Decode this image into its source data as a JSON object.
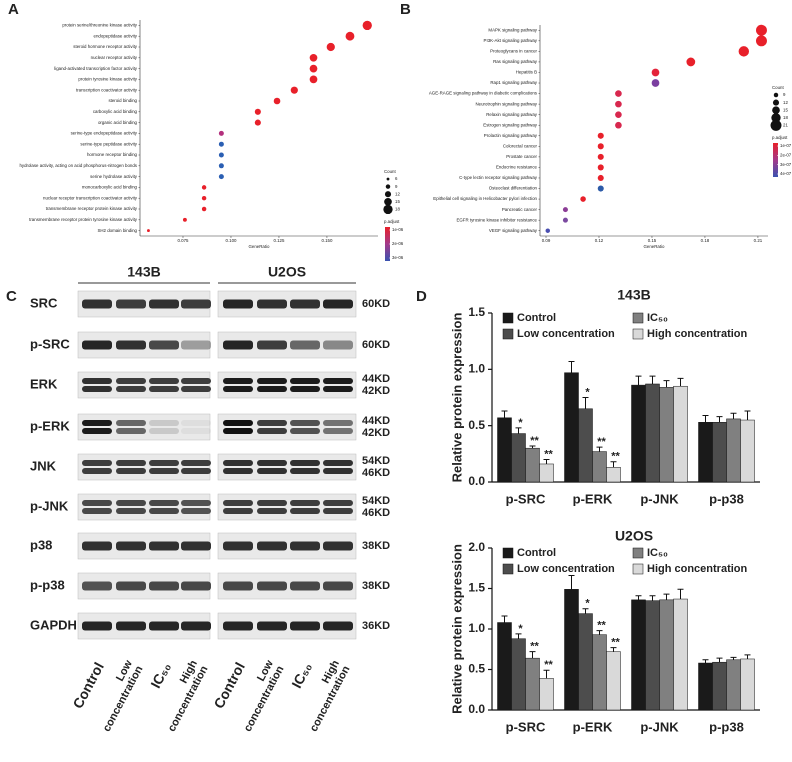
{
  "panel_labels": [
    "A",
    "B",
    "C",
    "D"
  ],
  "chart_data": [
    {
      "type": "dot",
      "xlabel": "GeneRatio",
      "categories": [
        "protein serine/threonine kinase activity",
        "endopeptidase activity",
        "steroid hormone receptor activity",
        "nuclear receptor activity",
        "ligand-activated transcription factor activity",
        "protein tyrosine kinase activity",
        "transcription coactivator activity",
        "steroid binding",
        "carboxylic acid binding",
        "organic acid binding",
        "serine-type endopeptidase activity",
        "serine-type peptidase activity",
        "hormone receptor binding",
        "hydrolase activity, acting on acid phosphorus-nitrogen bonds",
        "serine hydrolase activity",
        "monocarboxylic acid binding",
        "nuclear receptor transcription coactivator activity",
        "transmembrane receptor protein kinase activity",
        "transmembrane receptor protein tyrosine kinase activity",
        "SH2 domain binding"
      ],
      "values": [
        0.171,
        0.162,
        0.152,
        0.143,
        0.143,
        0.143,
        0.133,
        0.124,
        0.114,
        0.114,
        0.095,
        0.095,
        0.095,
        0.095,
        0.095,
        0.086,
        0.086,
        0.086,
        0.076,
        0.057
      ],
      "sizes": [
        18,
        17,
        16,
        15,
        15,
        15,
        14,
        13,
        12,
        12,
        10,
        10,
        10,
        10,
        10,
        9,
        9,
        9,
        8,
        6
      ],
      "colors": [
        "#e8202a",
        "#e8202a",
        "#e8202a",
        "#e8202a",
        "#e8202a",
        "#e8202a",
        "#e8202a",
        "#e8202a",
        "#e8202a",
        "#e8202a",
        "#b3307d",
        "#2b5fb3",
        "#2b5fb3",
        "#2b5fb3",
        "#2b5fb3",
        "#e8202a",
        "#e8202a",
        "#e8202a",
        "#e8202a",
        "#e8202a"
      ],
      "xlim": [
        0.0526,
        0.1766
      ],
      "xticks": [
        0.075,
        {
          "value": 0.1,
          "label": "0.100"
        },
        0.125,
        {
          "value": 0.15,
          "label": "0.150"
        }
      ],
      "size_legend": {
        "title": "Count",
        "values": [
          6,
          9,
          12,
          15,
          18
        ]
      },
      "color_legend": {
        "title": "p.adjust",
        "ticks": [
          {
            "value": 1e-06,
            "label": "1e-06"
          },
          {
            "value": 2e-06,
            "label": "2e-06"
          },
          {
            "value": 3e-06,
            "label": "3e-06"
          }
        ]
      }
    },
    {
      "type": "dot",
      "xlabel": "GeneRatio",
      "categories": [
        "MAPK signaling pathway",
        "PI3K-Akt signaling pathway",
        "Proteoglycans in cancer",
        "Ras signaling pathway",
        "Hepatitis B",
        "Rap1 signaling pathway",
        "AGE-RAGE signaling pathway in diabetic complications",
        "Neurotrophin signaling pathway",
        "Relaxin signaling pathway",
        "Estrogen signaling pathway",
        "Prolactin signaling pathway",
        "Colorectal cancer",
        "Prostate cancer",
        "Endocrine resistance",
        "C-type lectin receptor signaling pathway",
        "Osteoclast differentiation",
        "Epithelial cell signaling in Helicobacter pylori infection",
        "Pancreatic cancer",
        "EGFR tyrosine kinase inhibitor resistance",
        "VEGF signaling pathway"
      ],
      "values": [
        0.212,
        0.212,
        0.202,
        0.172,
        0.152,
        0.152,
        0.131,
        0.131,
        0.131,
        0.131,
        0.121,
        0.121,
        0.121,
        0.121,
        0.121,
        0.121,
        0.111,
        0.101,
        0.101,
        0.091
      ],
      "sizes": [
        21,
        21,
        20,
        17,
        15,
        15,
        13,
        13,
        13,
        13,
        12,
        12,
        12,
        12,
        12,
        12,
        11,
        10,
        10,
        9
      ],
      "colors": [
        "#e8202a",
        "#e8202a",
        "#e8202a",
        "#e8202a",
        "#e4233a",
        "#7b3fa0",
        "#d8284e",
        "#d8284e",
        "#d8284e",
        "#d8284e",
        "#e8202a",
        "#e8202a",
        "#e8202a",
        "#e8202a",
        "#e8202a",
        "#2d5ba8",
        "#e8202a",
        "#8c3d96",
        "#7b4aa0",
        "#4a4fb0"
      ],
      "xlim": [
        0.0866,
        0.2157
      ],
      "xticks": [
        0.09,
        0.12,
        0.15,
        0.18,
        0.21
      ],
      "size_legend": {
        "title": "Count",
        "values": [
          9,
          12,
          15,
          18,
          21
        ]
      },
      "color_legend": {
        "title": "p.adjust",
        "ticks": [
          {
            "value": 1e-07,
            "label": "1e-07"
          },
          {
            "value": 2e-07,
            "label": "2e-07"
          },
          {
            "value": 3e-07,
            "label": "3e-07"
          },
          {
            "value": 4e-07,
            "label": "4e-07"
          }
        ]
      }
    },
    {
      "type": "bar",
      "title": "143B",
      "ylabel": "Relative protein expression",
      "categories": [
        "p-SRC",
        "p-ERK",
        "p-JNK",
        "p-p38"
      ],
      "ylim": [
        0,
        1.5
      ],
      "yticks": [
        {
          "value": 0,
          "label": "0.0"
        },
        0.5,
        {
          "value": 1,
          "label": "1.0"
        },
        1.5
      ],
      "series": [
        {
          "name": "Control",
          "color": "#1a1a1a",
          "values": [
            0.57,
            0.97,
            0.86,
            0.53
          ],
          "errors": [
            0.06,
            0.1,
            0.08,
            0.06
          ]
        },
        {
          "name": "Low concentration",
          "color": "#4d4d4d",
          "values": [
            0.43,
            0.65,
            0.87,
            0.53
          ],
          "errors": [
            0.05,
            0.1,
            0.07,
            0.05
          ],
          "sig": [
            "*",
            "*",
            null,
            null
          ]
        },
        {
          "name": "IC₅₀",
          "color": "#808080",
          "values": [
            0.3,
            0.27,
            0.84,
            0.56
          ],
          "errors": [
            0.02,
            0.04,
            0.06,
            0.05
          ],
          "sig": [
            "**",
            "**",
            null,
            null
          ]
        },
        {
          "name": "High concentration",
          "color": "#d9d9d9",
          "values": [
            0.16,
            0.13,
            0.85,
            0.55
          ],
          "errors": [
            0.04,
            0.05,
            0.07,
            0.08
          ],
          "sig": [
            "**",
            "**",
            null,
            null
          ]
        }
      ]
    },
    {
      "type": "bar",
      "title": "U2OS",
      "ylabel": "Relative protein expression",
      "categories": [
        "p-SRC",
        "p-ERK",
        "p-JNK",
        "p-p38"
      ],
      "ylim": [
        0,
        2
      ],
      "yticks": [
        {
          "value": 0,
          "label": "0.0"
        },
        0.5,
        {
          "value": 1,
          "label": "1.0"
        },
        1.5,
        {
          "value": 2,
          "label": "2.0"
        }
      ],
      "series": [
        {
          "name": "Control",
          "color": "#1a1a1a",
          "values": [
            1.08,
            1.49,
            1.36,
            0.58
          ],
          "errors": [
            0.08,
            0.17,
            0.05,
            0.04
          ]
        },
        {
          "name": "Low concentration",
          "color": "#4d4d4d",
          "values": [
            0.88,
            1.19,
            1.35,
            0.59
          ],
          "errors": [
            0.06,
            0.06,
            0.06,
            0.05
          ],
          "sig": [
            "*",
            "*",
            null,
            null
          ]
        },
        {
          "name": "IC₅₀",
          "color": "#808080",
          "values": [
            0.64,
            0.93,
            1.36,
            0.62
          ],
          "errors": [
            0.08,
            0.05,
            0.07,
            0.03
          ],
          "sig": [
            "**",
            "**",
            null,
            null
          ]
        },
        {
          "name": "High concentration",
          "color": "#d9d9d9",
          "values": [
            0.39,
            0.72,
            1.37,
            0.63
          ],
          "errors": [
            0.1,
            0.05,
            0.12,
            0.05
          ],
          "sig": [
            "**",
            "**",
            null,
            null
          ]
        }
      ]
    }
  ],
  "blot": {
    "groups": [
      "143B",
      "U2OS"
    ],
    "rows": [
      {
        "label": "SRC",
        "sizes": [
          "60KD"
        ]
      },
      {
        "label": "p-SRC",
        "sizes": [
          "60KD"
        ]
      },
      {
        "label": "ERK",
        "sizes": [
          "44KD",
          "42KD"
        ]
      },
      {
        "label": "p-ERK",
        "sizes": [
          "44KD",
          "42KD"
        ]
      },
      {
        "label": "JNK",
        "sizes": [
          "54KD",
          "46KD"
        ]
      },
      {
        "label": "p-JNK",
        "sizes": [
          "54KD",
          "46KD"
        ]
      },
      {
        "label": "p38",
        "sizes": [
          "38KD"
        ]
      },
      {
        "label": "p-p38",
        "sizes": [
          "38KD"
        ]
      },
      {
        "label": "GAPDH",
        "sizes": [
          "36KD"
        ]
      }
    ],
    "lanes": [
      [
        "Control"
      ],
      [
        "Low",
        "concentration"
      ],
      [
        "IC₅₀"
      ],
      [
        "High",
        "concentration"
      ]
    ]
  }
}
